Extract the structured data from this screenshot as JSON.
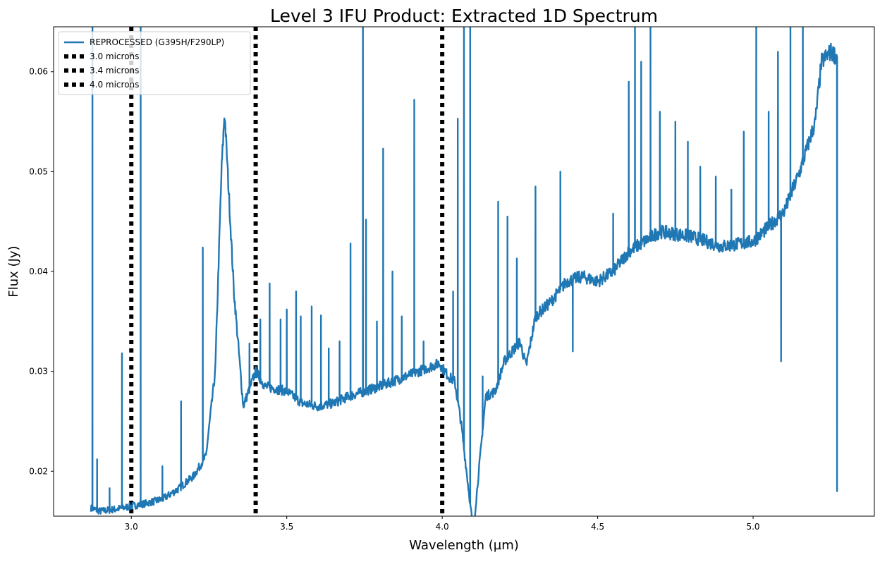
{
  "chart_data": {
    "type": "line",
    "title": "Level 3 IFU Product: Extracted 1D Spectrum",
    "xlabel": "Wavelength (µm)",
    "ylabel": "Flux (Jy)",
    "xlim": [
      2.75,
      5.39
    ],
    "ylim": [
      0.0155,
      0.0645
    ],
    "xticks": [
      3.0,
      3.5,
      4.0,
      4.5,
      5.0
    ],
    "xtick_labels": [
      "3.0",
      "3.5",
      "4.0",
      "4.5",
      "5.0"
    ],
    "yticks": [
      0.02,
      0.03,
      0.04,
      0.05,
      0.06
    ],
    "ytick_labels": [
      "0.02",
      "0.03",
      "0.04",
      "0.05",
      "0.06"
    ],
    "grid": false,
    "legend_position": "top-left",
    "series": [
      {
        "name": "REPROCESSED (G395H/F290LP)",
        "color": "#1f77b4",
        "style": "solid",
        "continuum": [
          [
            2.87,
            0.0163
          ],
          [
            2.9,
            0.016
          ],
          [
            2.95,
            0.0162
          ],
          [
            3.0,
            0.0165
          ],
          [
            3.05,
            0.0168
          ],
          [
            3.1,
            0.0172
          ],
          [
            3.15,
            0.0182
          ],
          [
            3.2,
            0.0195
          ],
          [
            3.24,
            0.0215
          ],
          [
            3.27,
            0.03
          ],
          [
            3.29,
            0.05
          ],
          [
            3.3,
            0.056
          ],
          [
            3.31,
            0.05
          ],
          [
            3.33,
            0.038
          ],
          [
            3.36,
            0.0265
          ],
          [
            3.4,
            0.03
          ],
          [
            3.43,
            0.0285
          ],
          [
            3.5,
            0.028
          ],
          [
            3.55,
            0.0268
          ],
          [
            3.6,
            0.0265
          ],
          [
            3.65,
            0.0268
          ],
          [
            3.7,
            0.0275
          ],
          [
            3.8,
            0.0285
          ],
          [
            3.9,
            0.0297
          ],
          [
            3.99,
            0.0308
          ],
          [
            4.02,
            0.0295
          ],
          [
            4.04,
            0.029
          ],
          [
            4.06,
            0.025
          ],
          [
            4.1,
            0.014
          ],
          [
            4.14,
            0.0275
          ],
          [
            4.17,
            0.028
          ],
          [
            4.2,
            0.031
          ],
          [
            4.25,
            0.033
          ],
          [
            4.27,
            0.0305
          ],
          [
            4.3,
            0.0355
          ],
          [
            4.35,
            0.037
          ],
          [
            4.4,
            0.039
          ],
          [
            4.45,
            0.0395
          ],
          [
            4.5,
            0.039
          ],
          [
            4.55,
            0.04
          ],
          [
            4.6,
            0.042
          ],
          [
            4.65,
            0.043
          ],
          [
            4.7,
            0.044
          ],
          [
            4.8,
            0.0435
          ],
          [
            4.9,
            0.0425
          ],
          [
            5.0,
            0.043
          ],
          [
            5.05,
            0.0445
          ],
          [
            5.1,
            0.046
          ],
          [
            5.15,
            0.05
          ],
          [
            5.2,
            0.055
          ],
          [
            5.22,
            0.061
          ],
          [
            5.25,
            0.062
          ],
          [
            5.27,
            0.0615
          ]
        ],
        "spikes": [
          [
            2.875,
            0.066
          ],
          [
            2.89,
            0.0212
          ],
          [
            2.93,
            0.0183
          ],
          [
            2.97,
            0.0318
          ],
          [
            3.03,
            0.066
          ],
          [
            3.1,
            0.0205
          ],
          [
            3.16,
            0.027
          ],
          [
            3.23,
            0.0424
          ],
          [
            3.38,
            0.0328
          ],
          [
            3.415,
            0.0352
          ],
          [
            3.445,
            0.0388
          ],
          [
            3.48,
            0.0352
          ],
          [
            3.5,
            0.0362
          ],
          [
            3.53,
            0.038
          ],
          [
            3.545,
            0.0355
          ],
          [
            3.58,
            0.0365
          ],
          [
            3.61,
            0.0356
          ],
          [
            3.635,
            0.0323
          ],
          [
            3.67,
            0.033
          ],
          [
            3.705,
            0.0428
          ],
          [
            3.745,
            0.066
          ],
          [
            3.755,
            0.0452
          ],
          [
            3.79,
            0.035
          ],
          [
            3.81,
            0.0523
          ],
          [
            3.84,
            0.04
          ],
          [
            3.87,
            0.0355
          ],
          [
            3.91,
            0.0572
          ],
          [
            3.94,
            0.033
          ],
          [
            4.035,
            0.038
          ],
          [
            4.05,
            0.0553
          ],
          [
            4.07,
            0.066
          ],
          [
            4.09,
            0.066
          ],
          [
            4.13,
            0.0295
          ],
          [
            4.18,
            0.047
          ],
          [
            4.21,
            0.0455
          ],
          [
            4.24,
            0.0413
          ],
          [
            4.3,
            0.0485
          ],
          [
            4.38,
            0.05
          ],
          [
            4.42,
            0.032
          ],
          [
            4.55,
            0.0458
          ],
          [
            4.6,
            0.059
          ],
          [
            4.62,
            0.066
          ],
          [
            4.64,
            0.061
          ],
          [
            4.67,
            0.066
          ],
          [
            4.7,
            0.056
          ],
          [
            4.75,
            0.055
          ],
          [
            4.79,
            0.053
          ],
          [
            4.83,
            0.0505
          ],
          [
            4.88,
            0.0495
          ],
          [
            4.93,
            0.0482
          ],
          [
            4.97,
            0.054
          ],
          [
            5.01,
            0.066
          ],
          [
            5.05,
            0.056
          ],
          [
            5.08,
            0.062
          ],
          [
            5.12,
            0.066
          ],
          [
            5.16,
            0.066
          ],
          [
            5.09,
            0.031
          ],
          [
            5.27,
            0.018
          ]
        ]
      },
      {
        "name": "3.0 microns",
        "color": "#000000",
        "style": "dotted",
        "x": 3.0
      },
      {
        "name": "3.4 microns",
        "color": "#000000",
        "style": "dotted",
        "x": 3.4
      },
      {
        "name": "4.0 microns",
        "color": "#000000",
        "style": "dotted",
        "x": 4.0
      }
    ]
  }
}
